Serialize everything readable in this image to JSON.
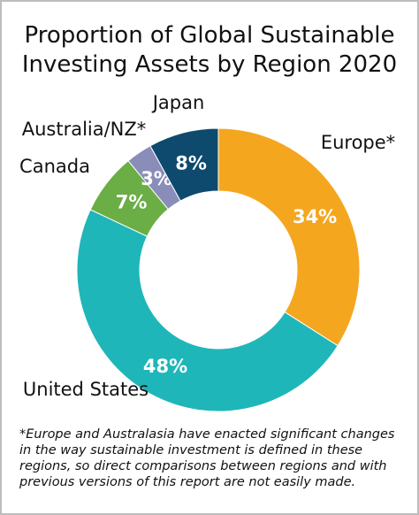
{
  "chart_data": {
    "type": "donut",
    "title": "Proportion of Global Sustainable Investing Assets by Region 2020",
    "categories": [
      "Europe*",
      "United States",
      "Canada",
      "Australia/NZ*",
      "Japan"
    ],
    "values": [
      34,
      48,
      7,
      3,
      8
    ],
    "value_labels": [
      "34%",
      "48%",
      "7%",
      "3%",
      "8%"
    ],
    "colors": [
      "#f5a61f",
      "#1fb6b9",
      "#6aae45",
      "#8a8db9",
      "#0e4a6e"
    ],
    "footnote": "*Europe and Australasia have enacted significant changes in the way sustainable investment is defined in these regions, so direct comparisons between regions and with previous versions of this report are not easily made."
  }
}
